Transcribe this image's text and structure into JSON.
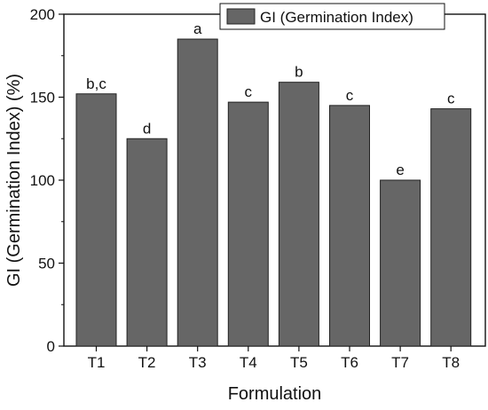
{
  "chart_data": {
    "type": "bar",
    "categories": [
      "T1",
      "T2",
      "T3",
      "T4",
      "T5",
      "T6",
      "T7",
      "T8"
    ],
    "series": [
      {
        "name": "GI (Germination Index)",
        "values": [
          152,
          125,
          185,
          147,
          159,
          145,
          100,
          143
        ],
        "color": "#666666"
      }
    ],
    "bar_labels": [
      "b,c",
      "d",
      "a",
      "c",
      "b",
      "c",
      "e",
      "c"
    ],
    "xlabel": "Formulation",
    "ylabel": "GI (Germination Index) (%)",
    "ylim": [
      0,
      200
    ],
    "yticks": [
      0,
      50,
      100,
      150,
      200
    ],
    "grid": false,
    "legend_position": "top-right",
    "bar_color": "#666666",
    "bar_edge_color": "#222222"
  }
}
